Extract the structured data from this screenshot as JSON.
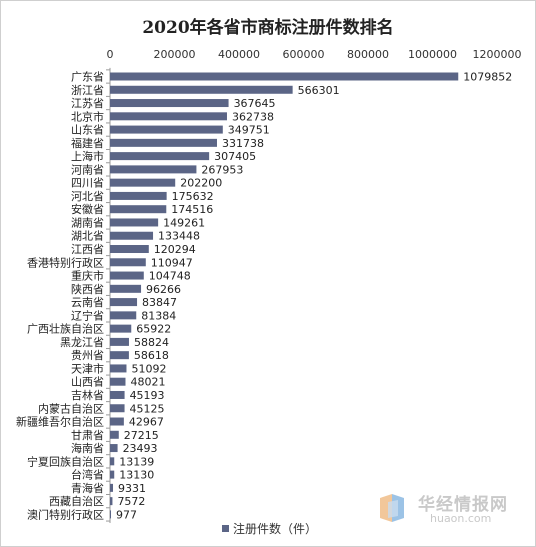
{
  "chart_data": {
    "type": "bar",
    "orientation": "horizontal",
    "title": "2020年各省市商标注册件数排名",
    "xlim": [
      0,
      1200000
    ],
    "x_ticks": [
      0,
      200000,
      400000,
      600000,
      800000,
      1000000,
      1200000
    ],
    "x_tick_labels": [
      "0",
      "200000",
      "400000",
      "600000",
      "800000",
      "1000000",
      "1200000"
    ],
    "x_axis_position": "top",
    "grid": false,
    "legend_position": "bottom",
    "bar_color": "#5b6586",
    "categories": [
      "广东省",
      "浙江省",
      "江苏省",
      "北京市",
      "山东省",
      "福建省",
      "上海市",
      "河南省",
      "四川省",
      "河北省",
      "安徽省",
      "湖南省",
      "湖北省",
      "江西省",
      "香港特别行政区",
      "重庆市",
      "陕西省",
      "云南省",
      "辽宁省",
      "广西壮族自治区",
      "黑龙江省",
      "贵州省",
      "天津市",
      "山西省",
      "吉林省",
      "内蒙古自治区",
      "新疆维吾尔自治区",
      "甘肃省",
      "海南省",
      "宁夏回族自治区",
      "台湾省",
      "青海省",
      "西藏自治区",
      "澳门特别行政区"
    ],
    "series": [
      {
        "name": "注册件数（件）",
        "values": [
          1079852,
          566301,
          367645,
          362738,
          349751,
          331738,
          307405,
          267953,
          202200,
          175632,
          174516,
          149261,
          133448,
          120294,
          110947,
          104748,
          96266,
          83847,
          81384,
          65922,
          58824,
          58618,
          51092,
          48021,
          45193,
          45125,
          42967,
          27215,
          23493,
          13139,
          13130,
          9331,
          7572,
          977
        ]
      }
    ]
  },
  "legend": {
    "label": "注册件数（件）"
  },
  "watermark": {
    "name": "华经情报网",
    "domain": "huaon.com"
  }
}
